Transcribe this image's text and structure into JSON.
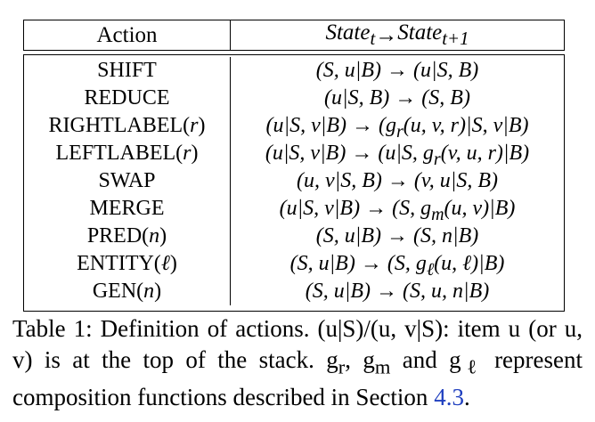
{
  "table": {
    "headers": [
      "Action",
      "State_t → State_{t+1}"
    ],
    "header_display": {
      "action": "Action",
      "state": "State_t → State_{t+1}"
    },
    "rows": [
      {
        "action": "SHIFT",
        "transition": "(S, u|B) → (u|S, B)"
      },
      {
        "action": "REDUCE",
        "transition": "(u|S, B) → (S, B)"
      },
      {
        "action": "RIGHTLABEL(r)",
        "transition": "(u|S, v|B) → (g_r(u, v, r)|S, v|B)"
      },
      {
        "action": "LEFTLABEL(r)",
        "transition": "(u|S, v|B) → (u|S, g_r(v, u, r)|B)"
      },
      {
        "action": "SWAP",
        "transition": "(u, v|S, B) → (v, u|S, B)"
      },
      {
        "action": "MERGE",
        "transition": "(u|S, v|B) → (S, g_m(u, v)|B)"
      },
      {
        "action": "PRED(n)",
        "transition": "(S, u|B) → (S, n|B)"
      },
      {
        "action": "ENTITY(ℓ)",
        "transition": "(S, u|B) → (S, g_ℓ(u, ℓ)|B)"
      },
      {
        "action": "GEN(n)",
        "transition": "(S, u|B) → (S, u, n|B)"
      }
    ]
  },
  "caption": {
    "text": "Table 1: Definition of actions. (u|S)/(u, v|S): item u (or u, v) is at the top of the stack. g_r, g_m and g_ℓ represent composition functions described in Section 4.3.",
    "section_ref": "4.3"
  }
}
